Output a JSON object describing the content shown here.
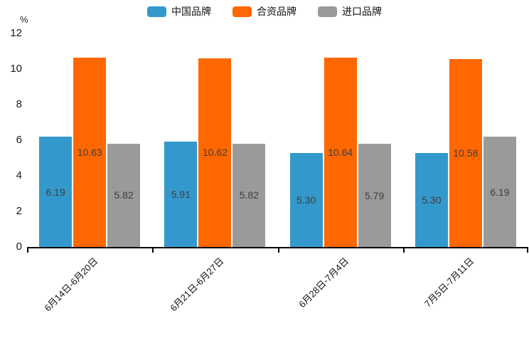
{
  "chart_data": {
    "type": "bar",
    "title": "",
    "xlabel": "",
    "ylabel": "%",
    "categories": [
      "6月14日-6月20日",
      "6月21日-6月27日",
      "6月28日-7月4日",
      "7月5日-7月11日"
    ],
    "series": [
      {
        "name": "中国品牌",
        "color": "#3399CC",
        "values": [
          6.19,
          5.91,
          5.3,
          5.3
        ]
      },
      {
        "name": "合资品牌",
        "color": "#FF6700",
        "values": [
          10.63,
          10.62,
          10.64,
          10.58
        ]
      },
      {
        "name": "进口品牌",
        "color": "#9A9A9A",
        "values": [
          5.82,
          5.82,
          5.79,
          6.19
        ]
      }
    ],
    "value_label_decimals": 2,
    "ylim": [
      0,
      12
    ],
    "yticks": [
      0,
      2,
      4,
      6,
      8,
      10,
      12
    ],
    "grid": false,
    "legend_position": "top",
    "axis_line_color": "#000000",
    "value_label_color": "#3d3d3d",
    "background_color": "#ffffff"
  }
}
